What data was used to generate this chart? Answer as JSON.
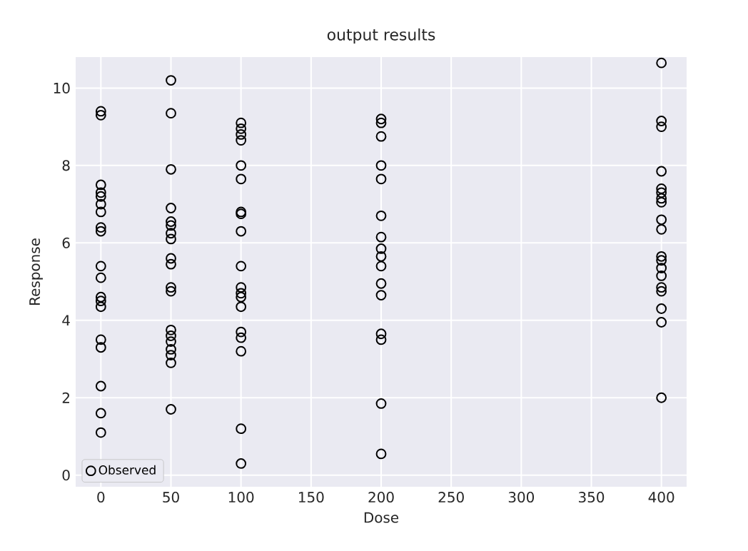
{
  "chart_data": {
    "type": "scatter",
    "title": "output results",
    "xlabel": "Dose",
    "ylabel": "Response",
    "xlim": [
      -18,
      418
    ],
    "xticks": [
      0,
      50,
      100,
      150,
      200,
      250,
      300,
      350,
      400
    ],
    "ylim": [
      -0.3,
      10.8
    ],
    "yticks": [
      0,
      2,
      4,
      6,
      8,
      10
    ],
    "grid": true,
    "legend": "bottom left",
    "marker": "circle",
    "series": [
      {
        "name": "Observed",
        "color": "#000000",
        "x": [
          0,
          0,
          0,
          0,
          0,
          0,
          0,
          0,
          0,
          0,
          0,
          0,
          0,
          0,
          0,
          0,
          0,
          0,
          0,
          50,
          50,
          50,
          50,
          50,
          50,
          50,
          50,
          50,
          50,
          50,
          50,
          50,
          50,
          50,
          50,
          50,
          50,
          50,
          100,
          100,
          100,
          100,
          100,
          100,
          100,
          100,
          100,
          100,
          100,
          100,
          100,
          100,
          100,
          100,
          100,
          100,
          100,
          200,
          200,
          200,
          200,
          200,
          200,
          200,
          200,
          200,
          200,
          200,
          200,
          200,
          200,
          200,
          200,
          400,
          400,
          400,
          400,
          400,
          400,
          400,
          400,
          400,
          400,
          400,
          400,
          400,
          400,
          400,
          400,
          400,
          400,
          400
        ],
        "values": [
          9.4,
          9.3,
          7.5,
          7.3,
          7.2,
          7.0,
          6.8,
          6.4,
          6.3,
          5.4,
          5.1,
          4.6,
          4.5,
          4.35,
          3.5,
          3.3,
          2.3,
          1.6,
          1.1,
          10.2,
          9.35,
          7.9,
          6.9,
          6.55,
          6.45,
          6.25,
          6.1,
          5.6,
          5.45,
          4.85,
          4.75,
          3.75,
          3.6,
          3.45,
          3.25,
          3.1,
          2.9,
          1.7,
          9.1,
          8.95,
          8.8,
          8.65,
          8.0,
          7.65,
          6.8,
          6.75,
          6.3,
          5.4,
          4.85,
          4.7,
          4.6,
          4.35,
          3.7,
          3.55,
          3.2,
          1.2,
          0.3,
          9.2,
          9.1,
          8.75,
          8.0,
          7.65,
          6.7,
          6.15,
          5.85,
          5.65,
          5.4,
          4.95,
          4.65,
          3.65,
          3.5,
          1.85,
          0.55,
          10.65,
          9.15,
          9.0,
          7.85,
          7.4,
          7.3,
          7.15,
          7.05,
          6.6,
          6.35,
          5.65,
          5.55,
          5.35,
          5.15,
          4.85,
          4.75,
          4.3,
          3.95,
          2.0
        ]
      }
    ]
  }
}
